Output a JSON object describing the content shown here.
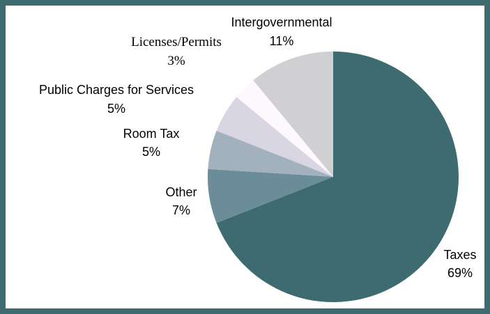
{
  "chart_data": {
    "type": "pie",
    "title": "",
    "slices": [
      {
        "label": "Taxes",
        "value": 69,
        "value_label": "69%",
        "color": "#3d6b6f"
      },
      {
        "label": "Other",
        "value": 7,
        "value_label": "7%",
        "color": "#6b8d99"
      },
      {
        "label": "Room Tax",
        "value": 5,
        "value_label": "5%",
        "color": "#a3b1bf"
      },
      {
        "label": "Public Charges for Services",
        "value": 5,
        "value_label": "5%",
        "color": "#d8d6e3"
      },
      {
        "label": "Licenses/Permits",
        "value": 3,
        "value_label": "3%",
        "color": "#fdf8fd"
      },
      {
        "label": "Intergovernmental",
        "value": 11,
        "value_label": "11%",
        "color": "#d0d0d3"
      }
    ],
    "start_angle_deg": 0,
    "direction": "clockwise",
    "legend": "none",
    "labels_placement": "outside"
  },
  "colors": {
    "frame_border": "#3d6b6f",
    "background": "#ffffff"
  }
}
